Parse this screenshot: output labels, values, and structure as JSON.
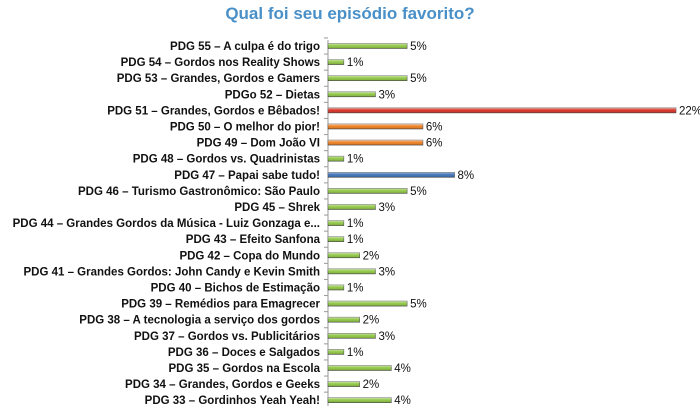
{
  "chart_data": {
    "type": "bar",
    "orientation": "horizontal",
    "title": "Qual foi seu episódio favorito?",
    "xlabel": "",
    "ylabel": "",
    "unit": "%",
    "xlim": [
      0,
      22
    ],
    "grid": false,
    "legend": "none",
    "categories": [
      "PDG 55 – A culpa é do trigo",
      "PDG 54 – Gordos nos Reality Shows",
      "PDG 53 – Grandes, Gordos e Gamers",
      "PDGo 52 – Dietas",
      "PDG 51 – Grandes, Gordos e Bêbados!",
      "PDG 50 – O melhor do pior!",
      "PDG 49 – Dom João VI",
      "PDG 48 – Gordos vs. Quadrinistas",
      "PDG 47 – Papai sabe tudo!",
      "PDG 46 – Turismo Gastronômico: São Paulo",
      "PDG 45 – Shrek",
      "PDG 44 – Grandes Gordos da Música - Luiz Gonzaga e...",
      "PDG 43 – Efeito Sanfona",
      "PDG 42 – Copa do Mundo",
      "PDG 41 – Grandes Gordos: John Candy e Kevin Smith",
      "PDG 40 – Bichos de Estimação",
      "PDG 39 – Remédios para Emagrecer",
      "PDG 38 – A tecnologia a serviço dos gordos",
      "PDG 37 – Gordos vs. Publicitários",
      "PDG 36 – Doces e Salgados",
      "PDG 35 – Gordos na Escola",
      "PDG 34 – Grandes, Gordos e Geeks",
      "PDG 33 – Gordinhos Yeah Yeah!"
    ],
    "values": [
      5,
      1,
      5,
      3,
      22,
      6,
      6,
      1,
      8,
      5,
      3,
      1,
      1,
      2,
      3,
      1,
      5,
      2,
      3,
      1,
      4,
      2,
      4
    ],
    "value_labels": [
      "5%",
      "1%",
      "5%",
      "3%",
      "22%",
      "6%",
      "6%",
      "1%",
      "8%",
      "5%",
      "3%",
      "1%",
      "1%",
      "2%",
      "3%",
      "1%",
      "5%",
      "2%",
      "3%",
      "1%",
      "4%",
      "2%",
      "4%"
    ],
    "bar_colors": [
      "#8dc63f",
      "#8dc63f",
      "#8dc63f",
      "#8dc63f",
      "#d92b20",
      "#ef7d1a",
      "#ef7d1a",
      "#8dc63f",
      "#3a6fb7",
      "#8dc63f",
      "#8dc63f",
      "#8dc63f",
      "#8dc63f",
      "#8dc63f",
      "#8dc63f",
      "#8dc63f",
      "#8dc63f",
      "#8dc63f",
      "#8dc63f",
      "#8dc63f",
      "#8dc63f",
      "#8dc63f",
      "#8dc63f"
    ],
    "colors": {
      "title": "#4a90c8",
      "axis": "#999999"
    }
  }
}
